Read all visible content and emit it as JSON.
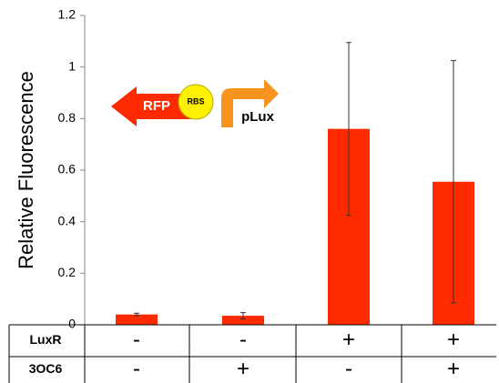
{
  "chart_data": {
    "type": "bar",
    "y_label": "Relative Fluorescence",
    "categories": [
      null,
      null,
      null,
      null
    ],
    "series": [
      {
        "color": "#ff2a00",
        "values": [
          0.04,
          0.035,
          0.76,
          0.555
        ],
        "errors": [
          0.005,
          0.012,
          0.335,
          0.47
        ]
      }
    ],
    "ylim": [
      0,
      1.2
    ],
    "yticks": [
      0,
      0.2,
      0.4,
      0.6,
      0.8,
      1,
      1.2
    ],
    "annotations": [
      "RFP",
      "RBS",
      "pLux"
    ],
    "table": {
      "rows": [
        {
          "label": "LuxR",
          "cells": [
            "-",
            "-",
            "+",
            "+"
          ]
        },
        {
          "label": "3OC6",
          "cells": [
            "-",
            "+",
            "-",
            "+"
          ]
        }
      ]
    }
  }
}
